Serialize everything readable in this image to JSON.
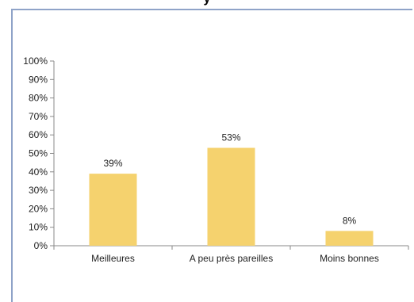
{
  "title_fragment": "y",
  "colors": {
    "bar": "#f5d26e",
    "frame": "#8fa3c8",
    "axis": "#8a8a8a"
  },
  "chart_data": {
    "type": "bar",
    "categories": [
      "Meilleures",
      "A peu près pareilles",
      "Moins bonnes"
    ],
    "values": [
      39,
      53,
      8
    ],
    "value_labels": [
      "39%",
      "53%",
      "8%"
    ],
    "ylim": [
      0,
      100
    ],
    "yticks": [
      0,
      10,
      20,
      30,
      40,
      50,
      60,
      70,
      80,
      90,
      100
    ],
    "ytick_labels": [
      "0%",
      "10%",
      "20%",
      "30%",
      "40%",
      "50%",
      "60%",
      "70%",
      "80%",
      "90%",
      "100%"
    ],
    "grid": false
  }
}
